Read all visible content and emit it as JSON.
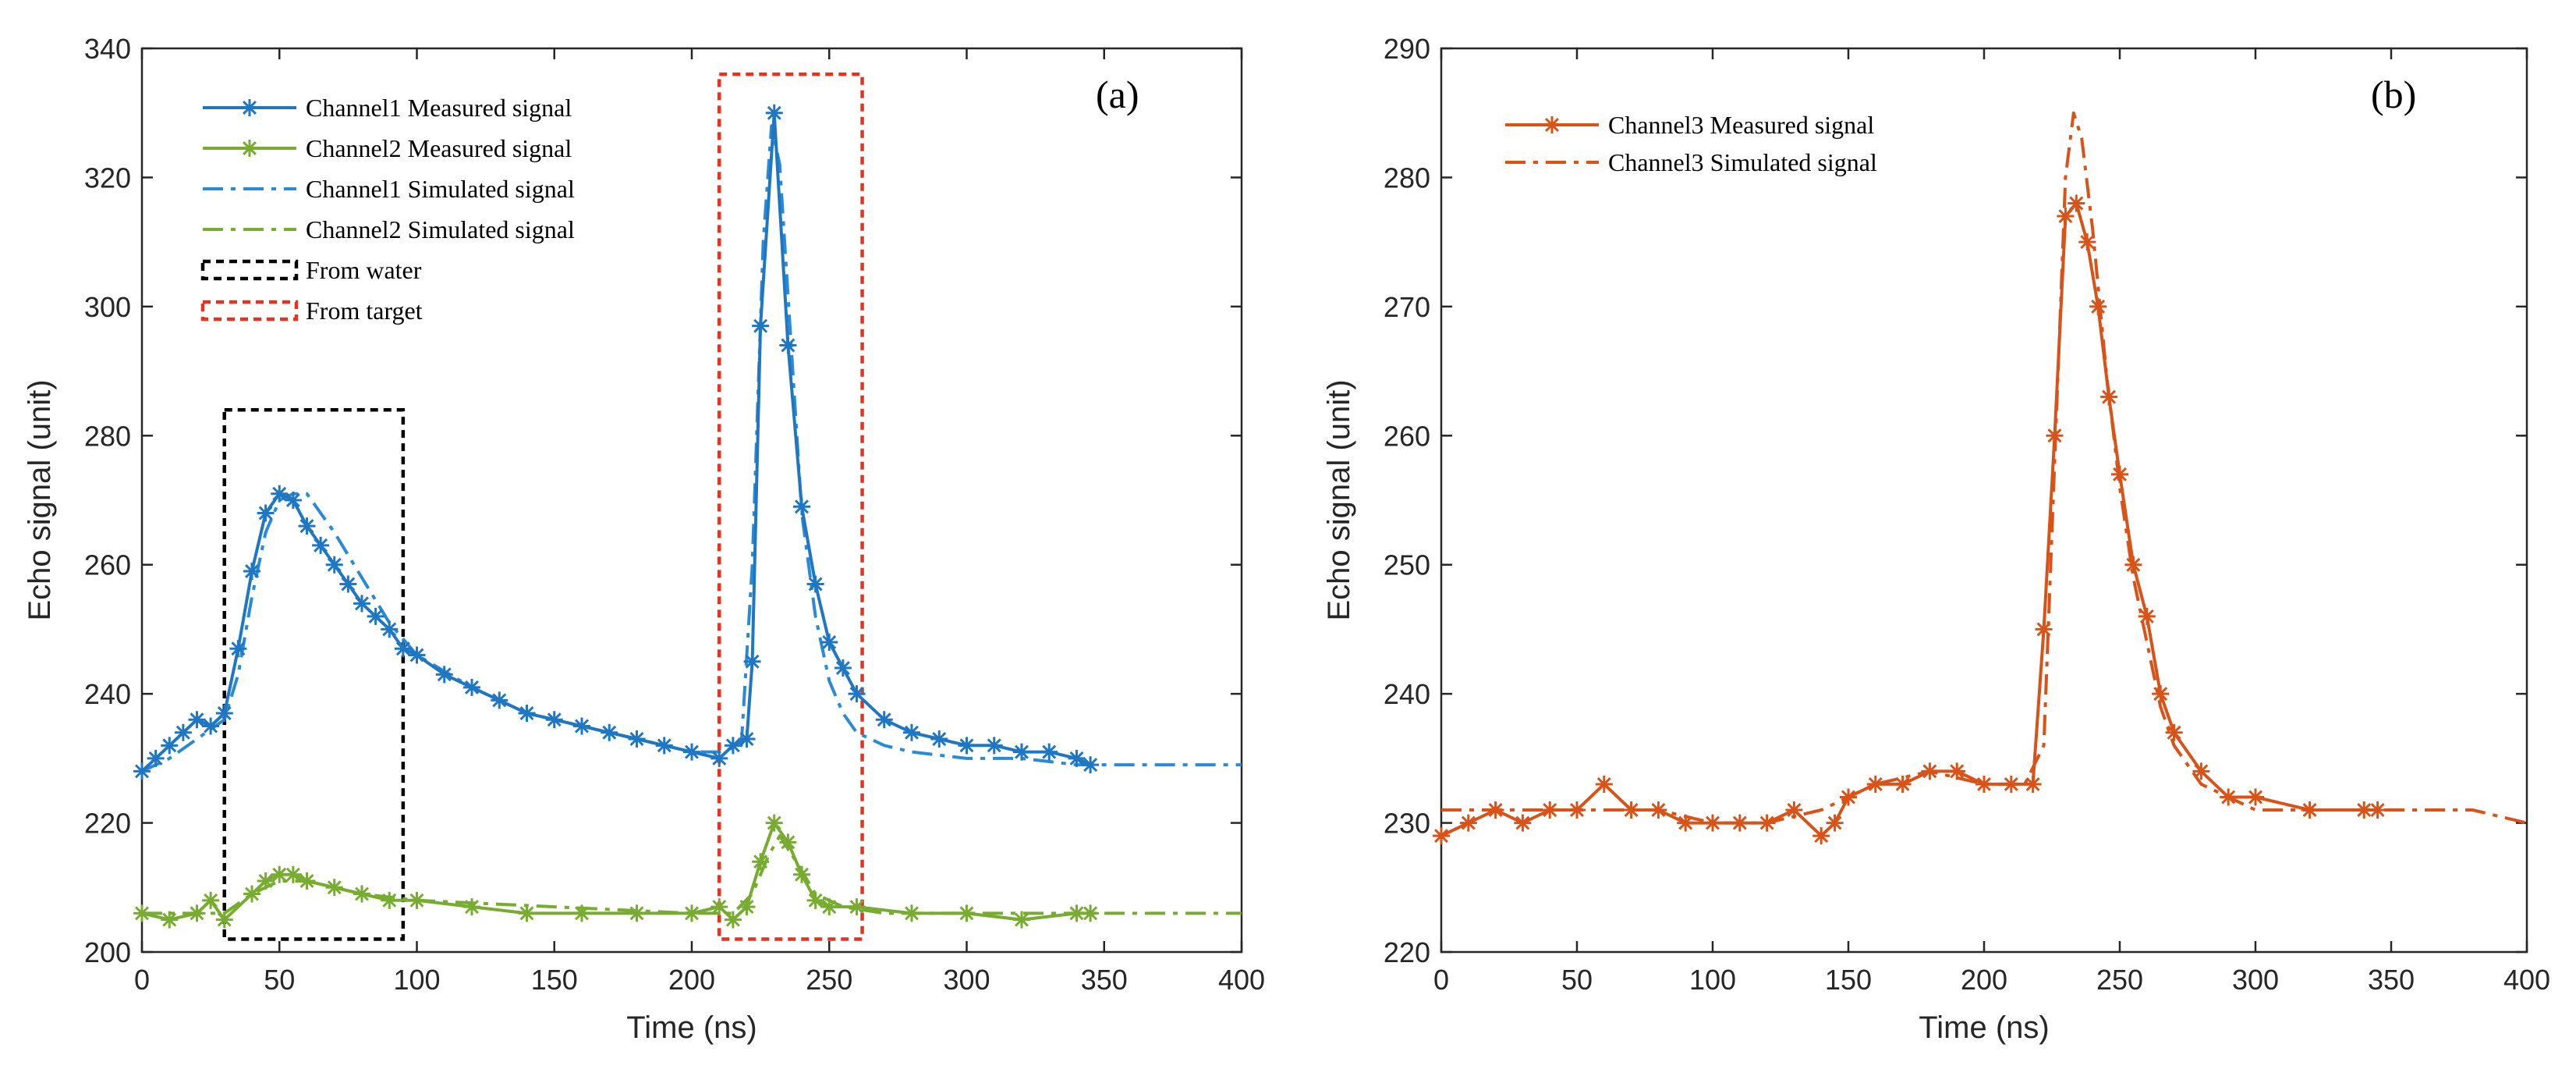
{
  "chart_data": [
    {
      "type": "line",
      "panel_label": "(a)",
      "xlabel": "Time (ns)",
      "ylabel": "Echo signal (unit)",
      "xlim": [
        0,
        400
      ],
      "ylim": [
        200,
        340
      ],
      "xticks": [
        0,
        50,
        100,
        150,
        200,
        250,
        300,
        350,
        400
      ],
      "yticks": [
        200,
        220,
        240,
        260,
        280,
        300,
        320,
        340
      ],
      "xtick_labels": [
        "0",
        "50",
        "100",
        "150",
        "200",
        "250",
        "300",
        "350",
        "400"
      ],
      "ytick_labels": [
        "200",
        "220",
        "240",
        "260",
        "280",
        "300",
        "320",
        "340"
      ],
      "series": [
        {
          "name": "Channel1 Measured  signal",
          "color": "#1f77c4",
          "style": "solid-asterisk",
          "x": [
            0,
            5,
            10,
            15,
            20,
            25,
            30,
            35,
            40,
            45,
            50,
            55,
            60,
            65,
            70,
            75,
            80,
            85,
            90,
            95,
            100,
            110,
            120,
            130,
            140,
            150,
            160,
            170,
            180,
            190,
            200,
            210,
            215,
            220,
            222,
            225,
            230,
            235,
            240,
            245,
            250,
            255,
            260,
            270,
            280,
            290,
            300,
            310,
            320,
            330,
            340,
            345
          ],
          "y": [
            228,
            230,
            232,
            234,
            236,
            235,
            237,
            247,
            259,
            268,
            271,
            270,
            266,
            263,
            260,
            257,
            254,
            252,
            250,
            247,
            246,
            243,
            241,
            239,
            237,
            236,
            235,
            234,
            233,
            232,
            231,
            230,
            232,
            233,
            245,
            297,
            330,
            294,
            269,
            257,
            248,
            244,
            240,
            236,
            234,
            233,
            232,
            232,
            231,
            231,
            230,
            229
          ]
        },
        {
          "name": "Channel2 Measured  signal",
          "color": "#77ac30",
          "style": "solid-asterisk",
          "x": [
            0,
            10,
            20,
            25,
            30,
            40,
            45,
            50,
            55,
            60,
            70,
            80,
            90,
            100,
            120,
            140,
            160,
            180,
            200,
            210,
            215,
            220,
            225,
            230,
            235,
            240,
            245,
            250,
            260,
            280,
            300,
            320,
            340,
            345
          ],
          "y": [
            206,
            205,
            206,
            208,
            205,
            209,
            211,
            212,
            212,
            211,
            210,
            209,
            208,
            208,
            207,
            206,
            206,
            206,
            206,
            207,
            205,
            207,
            214,
            220,
            217,
            212,
            208,
            207,
            207,
            206,
            206,
            205,
            206,
            206
          ]
        },
        {
          "name": "Channel1 Simulated  signal",
          "color": "#2a8ad6",
          "style": "dashdot",
          "x": [
            0,
            10,
            20,
            30,
            35,
            40,
            45,
            50,
            55,
            60,
            65,
            70,
            80,
            90,
            100,
            120,
            140,
            160,
            180,
            200,
            210,
            218,
            222,
            226,
            229,
            232,
            236,
            240,
            245,
            250,
            255,
            260,
            270,
            280,
            300,
            320,
            340,
            360,
            380,
            400
          ],
          "y": [
            228,
            230,
            233,
            236,
            243,
            255,
            265,
            270,
            271,
            271,
            268,
            265,
            258,
            251,
            246,
            241,
            237,
            235,
            233,
            231,
            231,
            232,
            260,
            310,
            328,
            322,
            295,
            268,
            252,
            242,
            237,
            234,
            232,
            231,
            230,
            230,
            229,
            229,
            229,
            229
          ]
        },
        {
          "name": "Channel2 Simulated  signal",
          "color": "#77ac30",
          "style": "dashdot",
          "x": [
            0,
            20,
            30,
            40,
            50,
            60,
            80,
            100,
            150,
            200,
            215,
            222,
            228,
            232,
            238,
            245,
            255,
            270,
            300,
            350,
            400
          ],
          "y": [
            206,
            206,
            206,
            209,
            211,
            211,
            209,
            208,
            207,
            206,
            206,
            209,
            215,
            218,
            214,
            209,
            207,
            206,
            206,
            206,
            206
          ]
        }
      ],
      "legend": {
        "placement": "top-left",
        "entries": [
          {
            "label": "Channel1 Measured  signal",
            "series": 0
          },
          {
            "label": "Channel2 Measured  signal",
            "series": 1
          },
          {
            "label": "Channel1 Simulated  signal",
            "series": 2
          },
          {
            "label": "Channel2 Simulated  signal",
            "series": 3
          },
          {
            "label": "From water",
            "box": 0
          },
          {
            "label": "From target",
            "box": 1
          }
        ]
      },
      "annotation_boxes": [
        {
          "label": "From water",
          "color": "#000000",
          "x_range": [
            30,
            95
          ],
          "y_range": [
            202,
            284
          ]
        },
        {
          "label": "From target",
          "color": "#e8321e",
          "x_range": [
            210,
            262
          ],
          "y_range": [
            202,
            336
          ]
        }
      ]
    },
    {
      "type": "line",
      "panel_label": "(b)",
      "xlabel": "Time (ns)",
      "ylabel": "Echo signal (unit)",
      "xlim": [
        0,
        400
      ],
      "ylim": [
        220,
        290
      ],
      "xticks": [
        0,
        50,
        100,
        150,
        200,
        250,
        300,
        350,
        400
      ],
      "yticks": [
        220,
        230,
        240,
        250,
        260,
        270,
        280,
        290
      ],
      "xtick_labels": [
        "0",
        "50",
        "100",
        "150",
        "200",
        "250",
        "300",
        "350",
        "400"
      ],
      "ytick_labels": [
        "220",
        "230",
        "240",
        "250",
        "260",
        "270",
        "280",
        "290"
      ],
      "series": [
        {
          "name": "Channel3 Measured  signal",
          "color": "#d95319",
          "style": "solid-asterisk",
          "x": [
            0,
            10,
            20,
            30,
            40,
            50,
            60,
            70,
            80,
            90,
            100,
            110,
            120,
            130,
            140,
            145,
            150,
            160,
            170,
            180,
            190,
            200,
            210,
            218,
            222,
            226,
            230,
            234,
            238,
            242,
            246,
            250,
            255,
            260,
            265,
            270,
            280,
            290,
            300,
            320,
            340,
            345
          ],
          "y": [
            229,
            230,
            231,
            230,
            231,
            231,
            233,
            231,
            231,
            230,
            230,
            230,
            230,
            231,
            229,
            230,
            232,
            233,
            233,
            234,
            234,
            233,
            233,
            233,
            245,
            260,
            277,
            278,
            275,
            270,
            263,
            257,
            250,
            246,
            240,
            237,
            234,
            232,
            232,
            231,
            231,
            231
          ]
        },
        {
          "name": "Channel3 Simulated  signal",
          "color": "#d95319",
          "style": "dashdot",
          "x": [
            0,
            20,
            40,
            60,
            80,
            100,
            120,
            140,
            150,
            160,
            180,
            200,
            215,
            222,
            226,
            230,
            233,
            236,
            240,
            245,
            250,
            255,
            260,
            265,
            270,
            280,
            300,
            320,
            350,
            380,
            400
          ],
          "y": [
            231,
            231,
            231,
            231,
            231,
            230,
            230,
            231,
            232,
            233,
            234,
            233,
            233,
            236,
            258,
            280,
            285,
            283,
            276,
            265,
            256,
            249,
            244,
            239,
            236,
            233,
            231,
            231,
            231,
            231,
            230
          ]
        }
      ],
      "legend": {
        "placement": "top-left",
        "entries": [
          {
            "label": "Channel3 Measured  signal",
            "series": 0
          },
          {
            "label": "Channel3 Simulated  signal",
            "series": 1
          }
        ]
      }
    }
  ]
}
